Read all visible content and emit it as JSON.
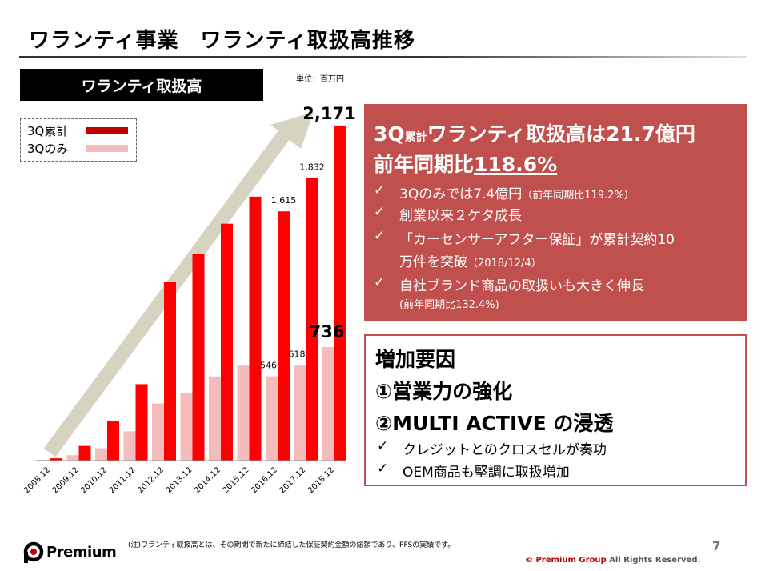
{
  "header": {
    "title": "ワランティ事業　ワランティ取扱高推移"
  },
  "section_label": "ワランティ取扱高",
  "unit_label": "単位：百万円",
  "legend": [
    {
      "name": "3Q累計",
      "color": "#ff0000"
    },
    {
      "name": "3Qのみ",
      "color": "#f4bcbc"
    }
  ],
  "chart_data": {
    "type": "bar",
    "categories": [
      "2008.12",
      "2009.12",
      "2010.12",
      "2011.12",
      "2012.12",
      "2013.12",
      "2014.12",
      "2015.12",
      "2016.12",
      "2017.12",
      "2018.12"
    ],
    "series": [
      {
        "name": "3Q累計",
        "values": [
          15,
          95,
          255,
          495,
          1160,
          1340,
          1535,
          1710,
          1615,
          1832,
          2171
        ]
      },
      {
        "name": "3Qのみ",
        "values": [
          5,
          35,
          80,
          190,
          370,
          440,
          545,
          620,
          546,
          618,
          736
        ]
      }
    ],
    "data_labels": [
      {
        "series": 0,
        "index": 8,
        "text": "1,615"
      },
      {
        "series": 0,
        "index": 9,
        "text": "1,832"
      },
      {
        "series": 0,
        "index": 10,
        "text": "2,171"
      },
      {
        "series": 1,
        "index": 8,
        "text": "546"
      },
      {
        "series": 1,
        "index": 9,
        "text": "618"
      },
      {
        "series": 1,
        "index": 10,
        "text": "736"
      }
    ],
    "ylim": [
      0,
      2300
    ],
    "colors": {
      "cumulative": "#ff0000",
      "quarter": "#f4bcbc",
      "arrow": "#d6d4c0"
    }
  },
  "highlight_box": {
    "line1_a": "3Q",
    "line1_small": "累計",
    "line1_b": "ワランティ取扱高は21.7億円",
    "line2_a": "前年同期比",
    "line2_b": "118.6%",
    "bullets": [
      {
        "check": "✓",
        "text": "3Qのみでは7.4億円",
        "small": "（前年同期比119.2%）"
      },
      {
        "check": "✓",
        "text": "創業以来２ケタ成長",
        "small": ""
      },
      {
        "check": "✓",
        "text": "「カーセンサーアフター保証」が累計契約10",
        "small": ""
      },
      {
        "check": "",
        "text": "万件を突破",
        "small": "（2018/12/4）"
      },
      {
        "check": "✓",
        "text": "自社ブランド商品の取扱いも大きく伸長",
        "small": ""
      },
      {
        "check": "",
        "text": "",
        "small": "(前年同期比132.4%)"
      }
    ]
  },
  "factors_box": {
    "title": "増加要因",
    "item1": "①営業力の強化",
    "item2": "②MULTI ACTIVE の浸透",
    "bullets": [
      {
        "check": "✓",
        "text": "クレジットとのクロスセルが奏功"
      },
      {
        "check": "✓",
        "text": "OEM商品も堅調に取扱増加"
      }
    ]
  },
  "footer": {
    "logo_text": "Premium",
    "note": "(注)ワランティ取扱高とは、その期間で新たに締結した保証契約金額の総額であり、PFSの実績です。",
    "copyright_brand": "© Premium Group",
    "copyright_rest": " All Rights Reserved.",
    "page_number": "7"
  }
}
